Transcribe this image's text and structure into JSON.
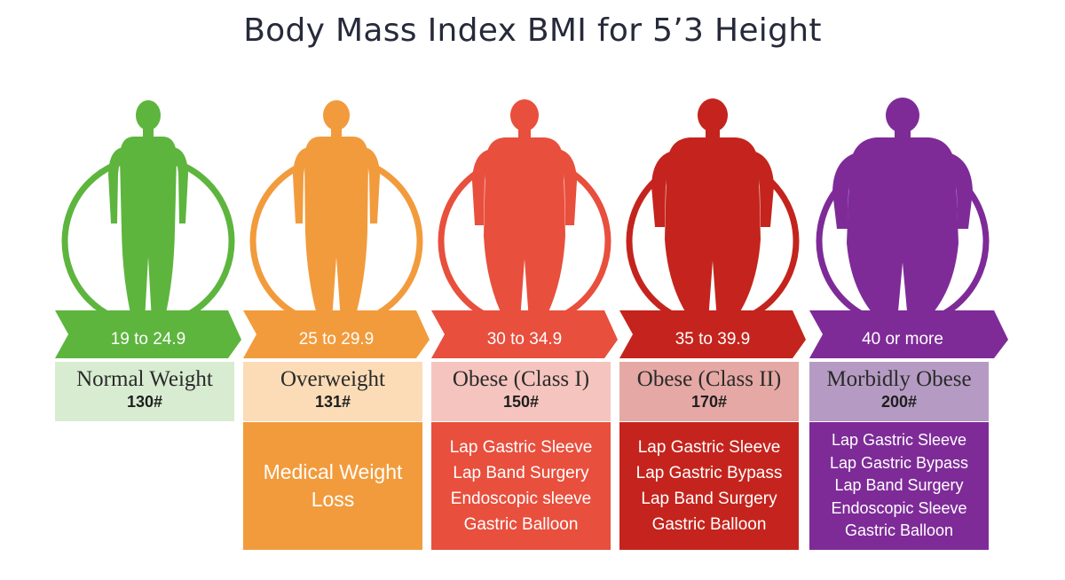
{
  "title": "Body Mass Index BMI for 5’3 Height",
  "categories": [
    {
      "range": "19 to 24.9",
      "name": "Normal Weight",
      "weight": "130#",
      "treatments": [],
      "colors": {
        "main": "#5db53e",
        "label_bg": "#d8ecd1",
        "treat_bg": "#ffffff"
      }
    },
    {
      "range": "25 to 29.9",
      "name": "Overweight",
      "weight": "131#",
      "treatments": [
        "Medical Weight Loss"
      ],
      "colors": {
        "main": "#f29b3c",
        "label_bg": "#fbdcb6",
        "treat_bg": "#f29b3c"
      }
    },
    {
      "range": "30 to 34.9",
      "name": "Obese (Class I)",
      "weight": "150#",
      "treatments": [
        "Lap Gastric Sleeve",
        "Lap Band Surgery",
        "Endoscopic sleeve",
        "Gastric Balloon"
      ],
      "colors": {
        "main": "#e84f3d",
        "label_bg": "#f5c4bf",
        "treat_bg": "#e84f3d"
      }
    },
    {
      "range": "35 to 39.9",
      "name": "Obese (Class II)",
      "weight": "170#",
      "treatments": [
        "Lap Gastric Sleeve",
        "Lap Gastric Bypass",
        "Lap Band Surgery",
        "Gastric Balloon"
      ],
      "colors": {
        "main": "#c4241d",
        "label_bg": "#e5a8a4",
        "treat_bg": "#c4241d"
      }
    },
    {
      "range": "40 or more",
      "name": "Morbidly Obese",
      "weight": "200#",
      "treatments": [
        "Lap Gastric Sleeve",
        "Lap Gastric Bypass",
        "Lap Band Surgery",
        "Endoscopic Sleeve",
        "Gastric Balloon"
      ],
      "colors": {
        "main": "#7e2b98",
        "label_bg": "#b59bc3",
        "treat_bg": "#7e2b98"
      }
    }
  ]
}
